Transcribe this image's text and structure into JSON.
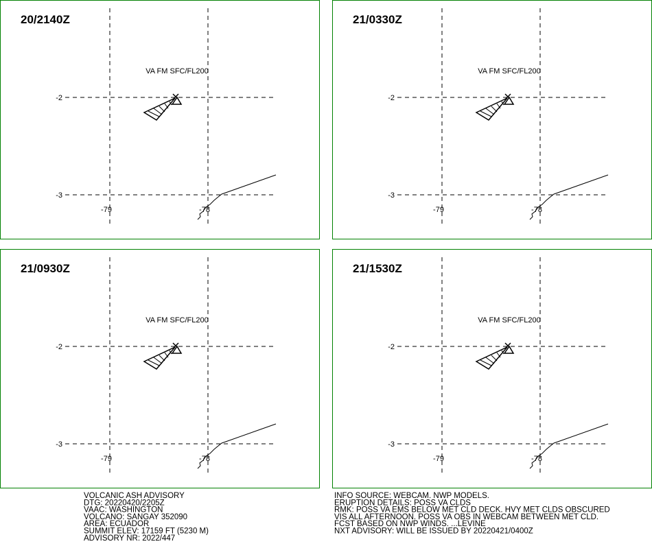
{
  "panels": [
    {
      "time": "20/2140Z",
      "label": "VA FM SFC/FL200",
      "lat_labels": [
        -2,
        -3
      ],
      "lon_labels": [
        -79,
        -78
      ]
    },
    {
      "time": "21/0330Z",
      "label": "VA FM SFC/FL200",
      "lat_labels": [
        -2,
        -3
      ],
      "lon_labels": [
        -79,
        -78
      ]
    },
    {
      "time": "21/0930Z",
      "label": "VA FM SFC/FL200",
      "lat_labels": [
        -2,
        -3
      ],
      "lon_labels": [
        -79,
        -78
      ]
    },
    {
      "time": "21/1530Z",
      "label": "VA FM SFC/FL200",
      "lat_labels": [
        -2,
        -3
      ],
      "lon_labels": [
        -79,
        -78
      ]
    }
  ],
  "footer": {
    "left": [
      "VOLCANIC ASH ADVISORY",
      "DTG: 20220420/2205Z",
      "VAAC: WASHINGTON",
      "VOLCANO: SANGAY 352090",
      "AREA: ECUADOR",
      "SUMMIT ELEV: 17159 FT (5230 M)",
      "ADVISORY NR: 2022/447"
    ],
    "right": [
      "INFO SOURCE: WEBCAM. NWP MODELS.",
      "ERUPTION DETAILS: POSS VA CLDS",
      "RMK: POSS VA EMS BELOW MET CLD DECK. HVY MET CLDS OBSCURED",
      "VIS ALL AFTERNOON. POSS VA OBS IN WEBCAM BETWEEN MET CLD.",
      "FCST BASED ON NWP WINDS. ...LEVINE",
      "NXT ADVISORY: WILL BE ISSUED BY 20220421/0400Z"
    ]
  }
}
